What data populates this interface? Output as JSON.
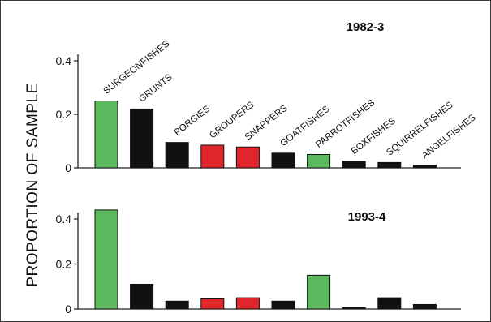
{
  "chart_data": {
    "type": "bar",
    "ylabel": "PROPORTION OF SAMPLE",
    "categories": [
      "SURGEONFISHES",
      "GRUNTS",
      "PORGIES",
      "GROUPERS",
      "SNAPPERS",
      "GOATFISHES",
      "PARROTFISHES",
      "BOXFISHES",
      "SQUIRRELFISHES",
      "ANGELFISHES"
    ],
    "bar_colors": [
      "#5cb85c",
      "#111111",
      "#111111",
      "#e0262b",
      "#e0262b",
      "#111111",
      "#5cb85c",
      "#111111",
      "#111111",
      "#111111"
    ],
    "panels": [
      {
        "title": "1982-3",
        "ylim": [
          0,
          0.4
        ],
        "yticks": [
          {
            "value": 0,
            "label": "0"
          },
          {
            "value": 0.2,
            "label": "0.2"
          },
          {
            "value": 0.4,
            "label": "0.4"
          }
        ],
        "values": [
          0.25,
          0.22,
          0.095,
          0.085,
          0.078,
          0.055,
          0.05,
          0.025,
          0.02,
          0.01
        ]
      },
      {
        "title": "1993-4",
        "ylim": [
          0,
          0.4
        ],
        "yticks": [
          {
            "value": 0,
            "label": "0"
          },
          {
            "value": 0.2,
            "label": "0.2"
          },
          {
            "value": 0.4,
            "label": "0.4"
          }
        ],
        "values": [
          0.44,
          0.11,
          0.035,
          0.045,
          0.05,
          0.035,
          0.15,
          0.005,
          0.05,
          0.02
        ]
      }
    ]
  }
}
